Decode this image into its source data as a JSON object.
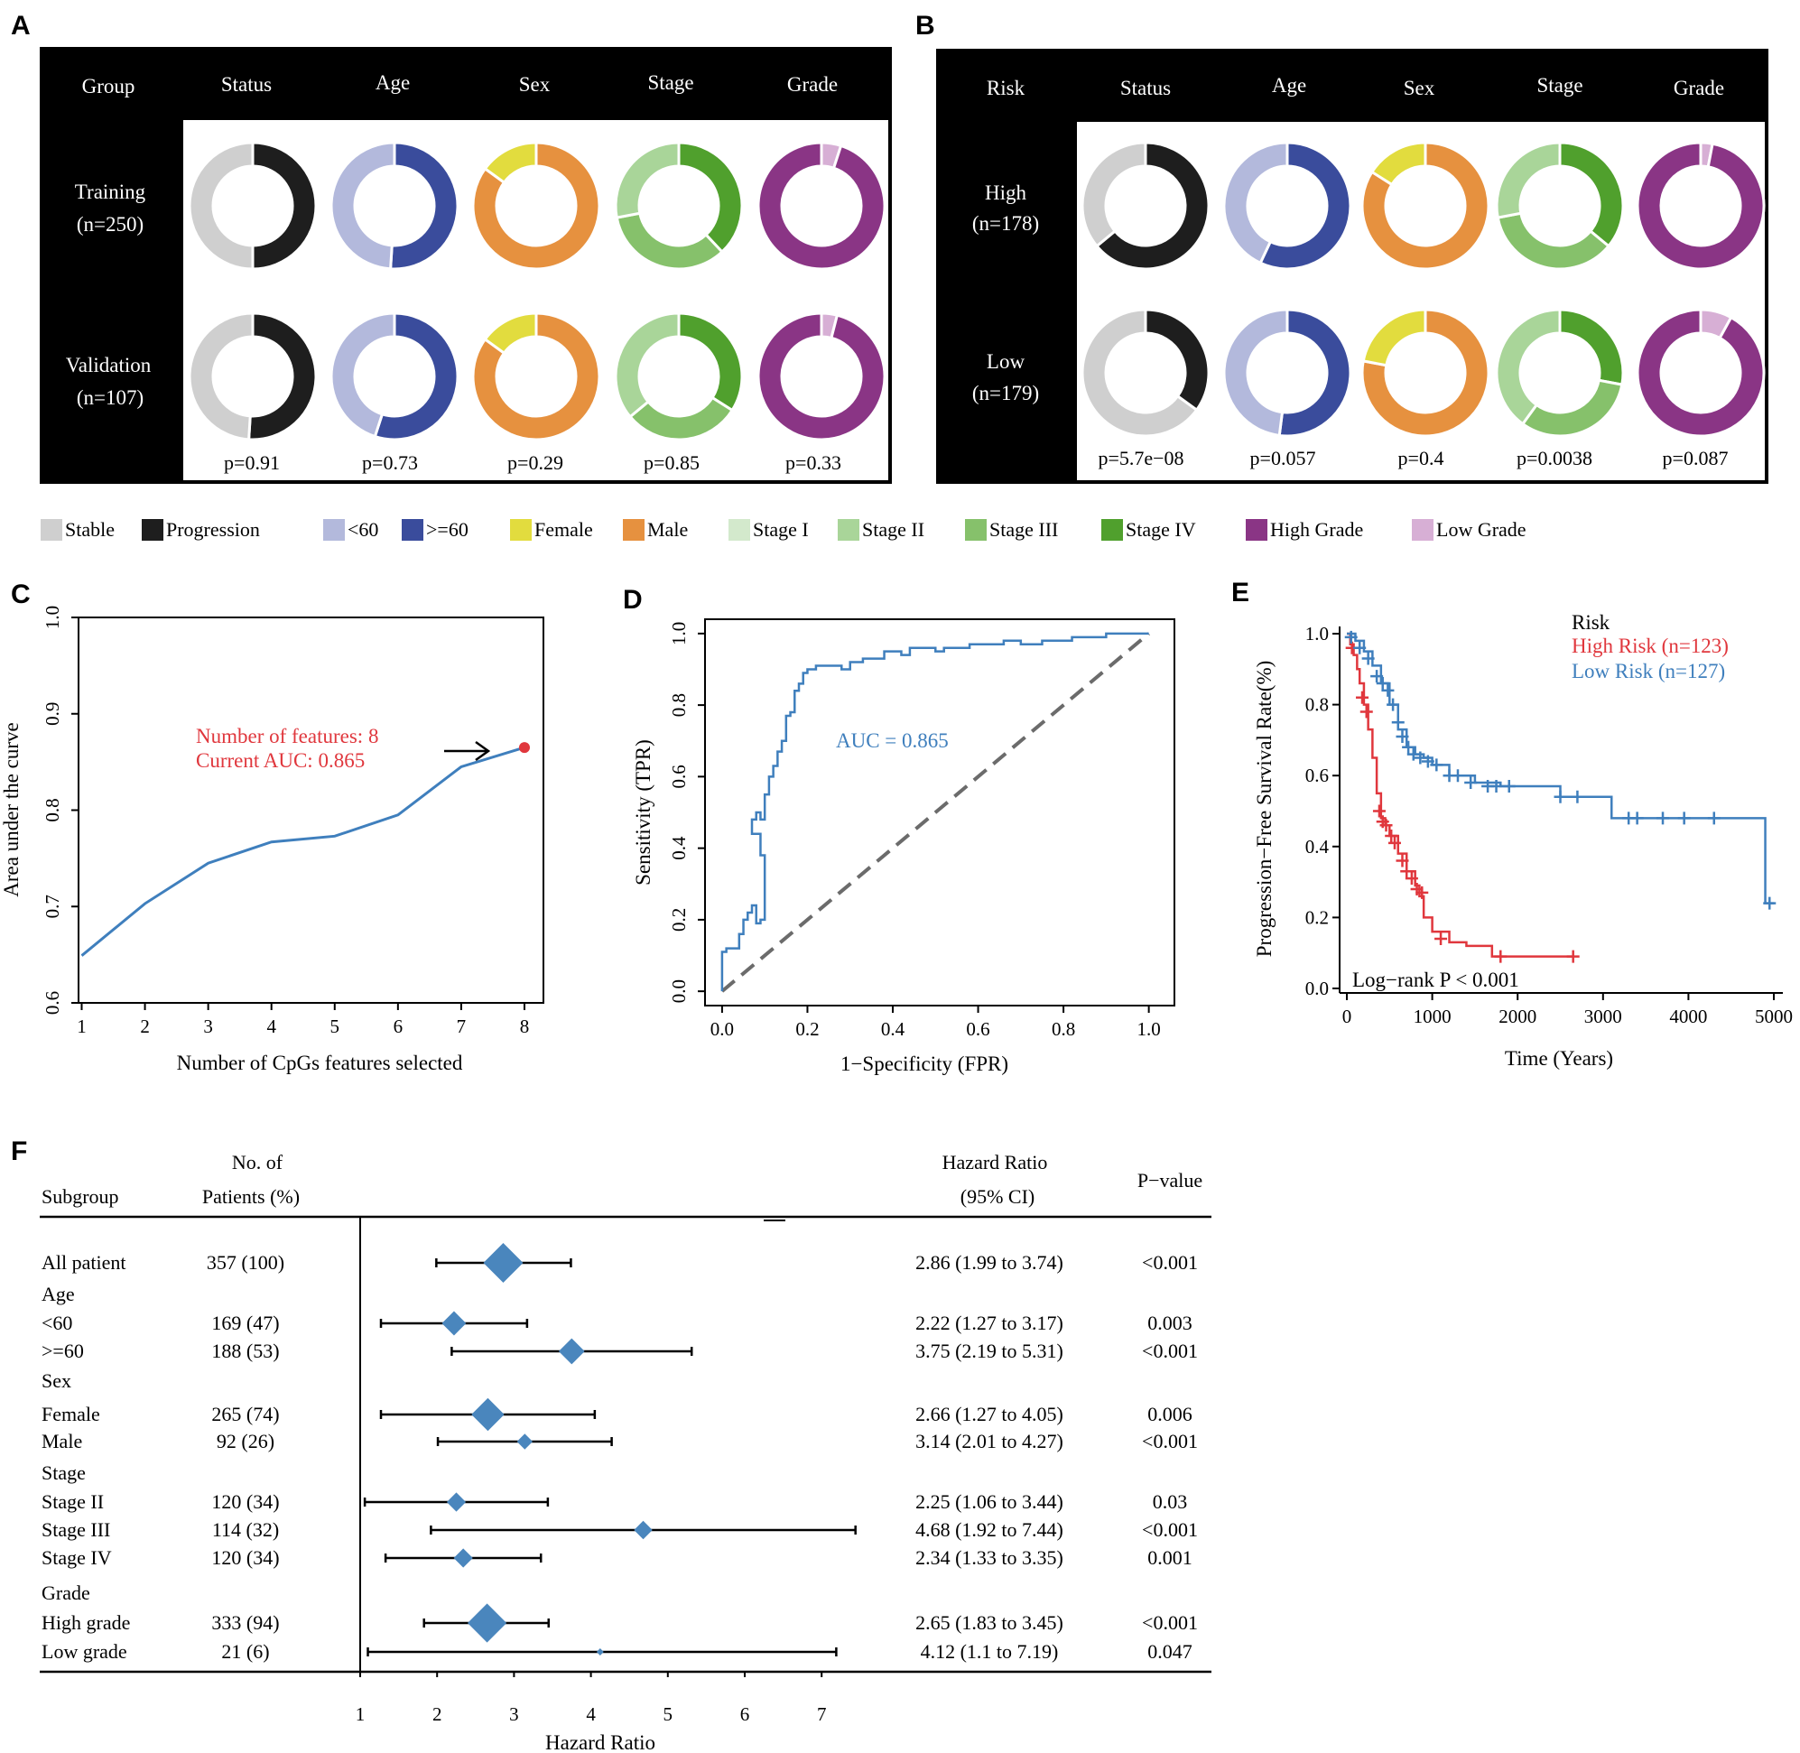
{
  "panel_labels": {
    "a": "A",
    "b": "B",
    "c": "C",
    "d": "D",
    "e": "E",
    "f": "F"
  },
  "colors": {
    "stable": "#cfcfcf",
    "progression": "#1e1e1e",
    "age_lt60": "#b3b9dc",
    "age_ge60": "#3a4c9c",
    "female": "#e2dc3e",
    "male": "#e6913f",
    "stage1": "#d3e9cc",
    "stage2": "#a9d599",
    "stage3": "#86c16b",
    "stage4": "#50a02d",
    "high_grade": "#8a3585",
    "low_grade": "#d7afd5",
    "line_blue": "#3f7fbd",
    "red": "#e0373d",
    "point_red": "#e0373d",
    "diamond": "#4a86bd",
    "grey_dash": "#6b6b6b"
  },
  "panel_a": {
    "corner": "Group",
    "columns": [
      "Status",
      "Age",
      "Sex",
      "Stage",
      "Grade"
    ],
    "rows": [
      {
        "label1": "Training",
        "label2": "(n=250)"
      },
      {
        "label1": "Validation",
        "label2": "(n=107)"
      }
    ],
    "pvalues": [
      "p=0.91",
      "p=0.73",
      "p=0.29",
      "p=0.85",
      "p=0.33"
    ],
    "donuts": [
      [
        [
          0.5,
          0.5
        ],
        [
          0.49,
          0.51
        ],
        [
          0.15,
          0.85
        ],
        [
          0.0,
          0.28,
          0.34,
          0.38
        ],
        [
          0.95,
          0.05
        ]
      ],
      [
        [
          0.49,
          0.51
        ],
        [
          0.45,
          0.55
        ],
        [
          0.15,
          0.85
        ],
        [
          0.0,
          0.36,
          0.3,
          0.34
        ],
        [
          0.96,
          0.04
        ]
      ]
    ]
  },
  "panel_b": {
    "corner": "Risk",
    "columns": [
      "Status",
      "Age",
      "Sex",
      "Stage",
      "Grade"
    ],
    "rows": [
      {
        "label1": "High",
        "label2": "(n=178)"
      },
      {
        "label1": "Low",
        "label2": "(n=179)"
      }
    ],
    "pvalues": [
      "p=5.7e−08",
      "p=0.057",
      "p=0.4",
      "p=0.0038",
      "p=0.087"
    ],
    "donuts": [
      [
        [
          0.36,
          0.64
        ],
        [
          0.43,
          0.57
        ],
        [
          0.16,
          0.84
        ],
        [
          0.0,
          0.28,
          0.36,
          0.36
        ],
        [
          0.97,
          0.03
        ]
      ],
      [
        [
          0.65,
          0.35
        ],
        [
          0.48,
          0.52
        ],
        [
          0.22,
          0.78
        ],
        [
          0.0,
          0.4,
          0.32,
          0.28
        ],
        [
          0.92,
          0.08
        ]
      ]
    ]
  },
  "legend": [
    {
      "label": "Stable",
      "color": "#cfcfcf"
    },
    {
      "label": "Progression",
      "color": "#1e1e1e"
    },
    {
      "label": "<60",
      "color": "#b3b9dc"
    },
    {
      "label": ">=60",
      "color": "#3a4c9c"
    },
    {
      "label": "Female",
      "color": "#e2dc3e"
    },
    {
      "label": "Male",
      "color": "#e6913f"
    },
    {
      "label": "Stage I",
      "color": "#d3e9cc"
    },
    {
      "label": "Stage II",
      "color": "#a9d599"
    },
    {
      "label": "Stage III",
      "color": "#86c16b"
    },
    {
      "label": "Stage IV",
      "color": "#50a02d"
    },
    {
      "label": "High Grade",
      "color": "#8a3585"
    },
    {
      "label": "Low Grade",
      "color": "#d7afd5"
    }
  ],
  "chart_data": [
    {
      "id": "C",
      "type": "line",
      "xlabel": "Number of CpGs features selected",
      "ylabel": "Area under the curve",
      "x": [
        1,
        2,
        3,
        4,
        5,
        6,
        7,
        8
      ],
      "y": [
        0.649,
        0.703,
        0.745,
        0.767,
        0.773,
        0.795,
        0.845,
        0.865
      ],
      "xlim": [
        0.95,
        8.3
      ],
      "ylim": [
        0.6,
        1.0
      ],
      "xticks": [
        "1",
        "2",
        "3",
        "4",
        "5",
        "6",
        "7",
        "8"
      ],
      "yticks": [
        "0.6",
        "0.7",
        "0.8",
        "0.9",
        "1.0"
      ],
      "annotation1": "Number of features: 8",
      "annotation2": "Current AUC: 0.865",
      "highlight": {
        "x": 8,
        "y": 0.865
      }
    },
    {
      "id": "D",
      "type": "line",
      "xlabel": "1−Specificity (FPR)",
      "ylabel": "Sensitivity (TPR)",
      "auc_label": "AUC = 0.865",
      "xlim": [
        -0.04,
        1.06
      ],
      "ylim": [
        -0.04,
        1.04
      ],
      "xticks": [
        "0.0",
        "0.2",
        "0.4",
        "0.6",
        "0.8",
        "1.0"
      ],
      "yticks": [
        "0.0",
        "0.2",
        "0.4",
        "0.6",
        "0.8",
        "1.0"
      ],
      "roc_fpr": [
        0,
        0,
        0.01,
        0.04,
        0.04,
        0.05,
        0.05,
        0.06,
        0.06,
        0.07,
        0.07,
        0.08,
        0.08,
        0.09,
        0.1,
        0.1,
        0.09,
        0.09,
        0.07,
        0.08,
        0.09,
        0.1,
        0.11,
        0.11,
        0.12,
        0.12,
        0.13,
        0.13,
        0.14,
        0.14,
        0.15,
        0.15,
        0.16,
        0.17,
        0.17,
        0.18,
        0.19,
        0.2,
        0.22,
        0.25,
        0.28,
        0.3,
        0.33,
        0.36,
        0.38,
        0.42,
        0.44,
        0.47,
        0.5,
        0.52,
        0.55,
        0.58,
        0.62,
        0.66,
        0.7,
        0.75,
        0.8,
        0.82,
        0.86,
        0.9,
        0.95,
        1.0
      ],
      "roc_tpr": [
        0,
        0.11,
        0.12,
        0.12,
        0.16,
        0.16,
        0.2,
        0.2,
        0.22,
        0.22,
        0.24,
        0.24,
        0.19,
        0.2,
        0.2,
        0.38,
        0.4,
        0.44,
        0.48,
        0.5,
        0.48,
        0.55,
        0.55,
        0.6,
        0.6,
        0.63,
        0.63,
        0.67,
        0.67,
        0.7,
        0.72,
        0.77,
        0.78,
        0.8,
        0.84,
        0.86,
        0.89,
        0.9,
        0.91,
        0.91,
        0.9,
        0.92,
        0.93,
        0.93,
        0.95,
        0.94,
        0.96,
        0.96,
        0.95,
        0.96,
        0.96,
        0.97,
        0.97,
        0.98,
        0.97,
        0.98,
        0.98,
        0.99,
        0.99,
        1.0,
        1.0,
        1.0
      ],
      "diagonal": [
        [
          0,
          0
        ],
        [
          1,
          1
        ]
      ]
    },
    {
      "id": "E",
      "type": "line",
      "xlabel": "Time (Years)",
      "ylabel": "Progression−Free Survival Rate(%)",
      "xlim": [
        -100,
        5100
      ],
      "ylim": [
        -0.02,
        1.03
      ],
      "xticks": [
        "0",
        "1000",
        "2000",
        "3000",
        "4000",
        "5000"
      ],
      "yticks": [
        "0.0",
        "0.2",
        "0.4",
        "0.6",
        "0.8",
        "1.0"
      ],
      "legend_title": "Risk",
      "logrank": "Log−rank P < 0.001",
      "series": [
        {
          "name": "High Risk (n=123)",
          "color": "#e0373d",
          "t": [
            0,
            40,
            80,
            120,
            150,
            200,
            250,
            300,
            350,
            400,
            450,
            500,
            600,
            700,
            800,
            850,
            900,
            1000,
            1200,
            1400,
            1700,
            2650
          ],
          "s": [
            1.0,
            0.97,
            0.94,
            0.9,
            0.86,
            0.8,
            0.73,
            0.65,
            0.55,
            0.48,
            0.46,
            0.43,
            0.38,
            0.33,
            0.29,
            0.26,
            0.2,
            0.16,
            0.13,
            0.12,
            0.09,
            0.09
          ],
          "censor": [
            [
              60,
              0.96
            ],
            [
              180,
              0.82
            ],
            [
              230,
              0.78
            ],
            [
              380,
              0.5
            ],
            [
              420,
              0.47
            ],
            [
              460,
              0.46
            ],
            [
              520,
              0.43
            ],
            [
              560,
              0.41
            ],
            [
              650,
              0.36
            ],
            [
              700,
              0.33
            ],
            [
              760,
              0.31
            ],
            [
              820,
              0.28
            ],
            [
              880,
              0.27
            ],
            [
              1100,
              0.14
            ],
            [
              1800,
              0.09
            ],
            [
              2650,
              0.09
            ]
          ]
        },
        {
          "name": "Low Risk (n=127)",
          "color": "#3f7fbd",
          "t": [
            0,
            100,
            200,
            300,
            400,
            500,
            600,
            700,
            800,
            900,
            1000,
            1200,
            1500,
            1800,
            2500,
            3100,
            3500,
            4000,
            4900,
            5000
          ],
          "s": [
            1.0,
            0.98,
            0.95,
            0.91,
            0.86,
            0.8,
            0.73,
            0.68,
            0.66,
            0.65,
            0.63,
            0.6,
            0.58,
            0.57,
            0.54,
            0.48,
            0.48,
            0.48,
            0.24,
            0.24
          ],
          "censor": [
            [
              50,
              0.99
            ],
            [
              150,
              0.96
            ],
            [
              250,
              0.93
            ],
            [
              350,
              0.88
            ],
            [
              420,
              0.86
            ],
            [
              480,
              0.84
            ],
            [
              540,
              0.8
            ],
            [
              600,
              0.75
            ],
            [
              650,
              0.71
            ],
            [
              720,
              0.68
            ],
            [
              780,
              0.66
            ],
            [
              860,
              0.65
            ],
            [
              950,
              0.64
            ],
            [
              1050,
              0.63
            ],
            [
              1200,
              0.6
            ],
            [
              1300,
              0.6
            ],
            [
              1450,
              0.58
            ],
            [
              1650,
              0.57
            ],
            [
              1750,
              0.57
            ],
            [
              1900,
              0.57
            ],
            [
              2500,
              0.54
            ],
            [
              2700,
              0.54
            ],
            [
              3300,
              0.48
            ],
            [
              3400,
              0.48
            ],
            [
              3700,
              0.48
            ],
            [
              3950,
              0.48
            ],
            [
              4300,
              0.48
            ],
            [
              4950,
              0.24
            ]
          ]
        }
      ]
    },
    {
      "id": "F",
      "type": "scatter",
      "xlabel": "Hazard Ratio",
      "xlim": [
        1,
        7.5
      ],
      "xticks": [
        "1",
        "2",
        "3",
        "4",
        "5",
        "6",
        "7"
      ],
      "header": {
        "subgroup": "Subgroup",
        "no1": "No. of",
        "no2": "Patients (%)",
        "hr1": "Hazard Ratio",
        "hr2": "(95% CI)",
        "p": "P−value"
      },
      "rows": [
        {
          "label": "All patient",
          "n": "357 (100)",
          "hr": 2.86,
          "lo": 1.99,
          "hi": 3.74,
          "ci": "2.86 (1.99 to 3.74)",
          "p": "<0.001",
          "size": 1.0,
          "header": false
        },
        {
          "label": "Age",
          "n": "",
          "hr": null,
          "lo": null,
          "hi": null,
          "ci": "",
          "p": "",
          "size": 0,
          "header": true
        },
        {
          "label": "<60",
          "n": "169 (47)",
          "hr": 2.22,
          "lo": 1.27,
          "hi": 3.17,
          "ci": "2.22 (1.27 to 3.17)",
          "p": "0.003",
          "size": 0.55,
          "header": false
        },
        {
          "label": ">=60",
          "n": "188 (53)",
          "hr": 3.75,
          "lo": 2.19,
          "hi": 5.31,
          "ci": "3.75 (2.19 to 5.31)",
          "p": "<0.001",
          "size": 0.6,
          "header": false
        },
        {
          "label": "Sex",
          "n": "",
          "hr": null,
          "lo": null,
          "hi": null,
          "ci": "",
          "p": "",
          "size": 0,
          "header": true
        },
        {
          "label": "Female",
          "n": "265 (74)",
          "hr": 2.66,
          "lo": 1.27,
          "hi": 4.05,
          "ci": "2.66 (1.27 to 4.05)",
          "p": "0.006",
          "size": 0.8,
          "header": false
        },
        {
          "label": "Male",
          "n": "92 (26)",
          "hr": 3.14,
          "lo": 2.01,
          "hi": 4.27,
          "ci": "3.14 (2.01 to 4.27)",
          "p": "<0.001",
          "size": 0.3,
          "header": false
        },
        {
          "label": "Stage",
          "n": "",
          "hr": null,
          "lo": null,
          "hi": null,
          "ci": "",
          "p": "",
          "size": 0,
          "header": true
        },
        {
          "label": "Stage II",
          "n": "120 (34)",
          "hr": 2.25,
          "lo": 1.06,
          "hi": 3.44,
          "ci": "2.25 (1.06 to 3.44)",
          "p": "0.03",
          "size": 0.4,
          "header": false
        },
        {
          "label": "Stage III",
          "n": "114 (32)",
          "hr": 4.68,
          "lo": 1.92,
          "hi": 7.44,
          "ci": "4.68 (1.92 to 7.44)",
          "p": "<0.001",
          "size": 0.38,
          "header": false
        },
        {
          "label": "Stage IV",
          "n": "120 (34)",
          "hr": 2.34,
          "lo": 1.33,
          "hi": 3.35,
          "ci": "2.34 (1.33 to 3.35)",
          "p": "0.001",
          "size": 0.4,
          "header": false
        },
        {
          "label": "Grade",
          "n": "",
          "hr": null,
          "lo": null,
          "hi": null,
          "ci": "",
          "p": "",
          "size": 0,
          "header": true
        },
        {
          "label": "High grade",
          "n": "333 (94)",
          "hr": 2.65,
          "lo": 1.83,
          "hi": 3.45,
          "ci": "2.65 (1.83 to 3.45)",
          "p": "<0.001",
          "size": 0.98,
          "header": false
        },
        {
          "label": "Low grade",
          "n": "21 (6)",
          "hr": 4.12,
          "lo": 1.1,
          "hi": 7.19,
          "ci": "4.12 (1.1 to 7.19)",
          "p": "0.047",
          "size": 0.05,
          "header": false
        }
      ]
    }
  ]
}
